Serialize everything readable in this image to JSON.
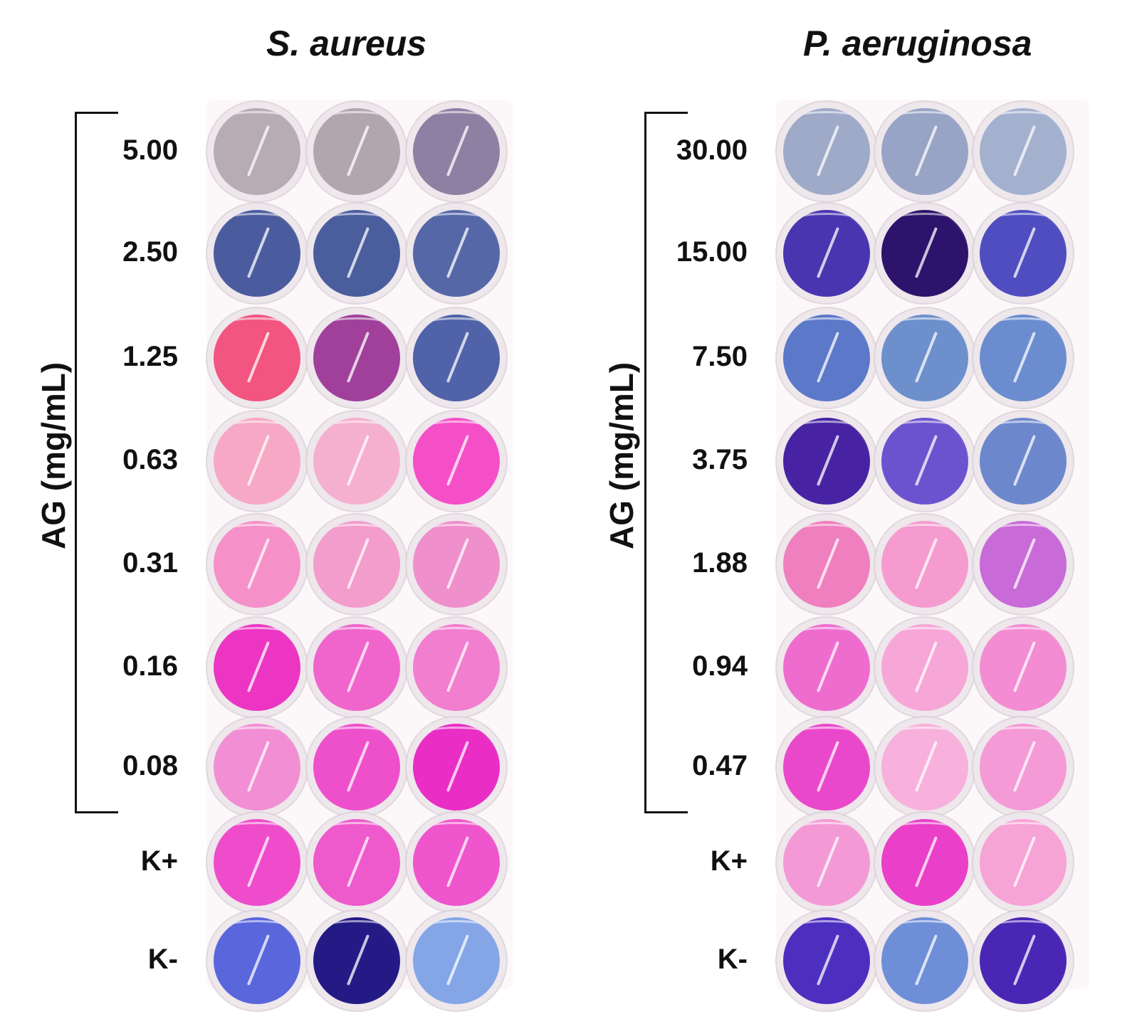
{
  "panels": [
    {
      "title": "S. aureus",
      "axis_label": "AG (mg/mL)",
      "rows": [
        {
          "label": "5.00",
          "wells": [
            "#b7acb3",
            "#b2a6ae",
            "#8e80a3"
          ]
        },
        {
          "label": "2.50",
          "wells": [
            "#4b5c9e",
            "#4a5d9d",
            "#5567a6"
          ]
        },
        {
          "label": "1.25",
          "wells": [
            "#f2557f",
            "#a0409b",
            "#5062a8"
          ]
        },
        {
          "label": "0.63",
          "wells": [
            "#f7a8c4",
            "#f6b0cf",
            "#f54fc8"
          ]
        },
        {
          "label": "0.31",
          "wells": [
            "#f591c8",
            "#f29dcb",
            "#ef8fcb"
          ]
        },
        {
          "label": "0.16",
          "wells": [
            "#ec35c2",
            "#f065cc",
            "#f27ed0"
          ]
        },
        {
          "label": "0.08",
          "wells": [
            "#f28fd4",
            "#ee50cc",
            "#e92dc5"
          ]
        },
        {
          "label": "K+",
          "wells": [
            "#ef4ccb",
            "#ee59cc",
            "#ef55cc"
          ]
        },
        {
          "label": "K-",
          "wells": [
            "#5a66dc",
            "#241a86",
            "#84a6e6"
          ]
        }
      ]
    },
    {
      "title": "P. aeruginosa",
      "axis_label": "AG (mg/mL)",
      "rows": [
        {
          "label": "30.00",
          "wells": [
            "#9eaac8",
            "#98a4c6",
            "#a3b1cf"
          ]
        },
        {
          "label": "15.00",
          "wells": [
            "#4a35b0",
            "#2d136b",
            "#4f4dc0"
          ]
        },
        {
          "label": "7.50",
          "wells": [
            "#5b78c9",
            "#6d90cc",
            "#6b8dcf"
          ]
        },
        {
          "label": "3.75",
          "wells": [
            "#4723a3",
            "#6b53cf",
            "#6c87cc"
          ]
        },
        {
          "label": "1.88",
          "wells": [
            "#f07fbf",
            "#f59bcf",
            "#c86ad8"
          ]
        },
        {
          "label": "0.94",
          "wells": [
            "#ef6ccf",
            "#f7a6d8",
            "#f38cd2"
          ]
        },
        {
          "label": "0.47",
          "wells": [
            "#ea48cb",
            "#f7b1dc",
            "#f49ad6"
          ]
        },
        {
          "label": "K+",
          "wells": [
            "#f39ad6",
            "#ea3fc8",
            "#f6a3d6"
          ]
        },
        {
          "label": "K-",
          "wells": [
            "#4c2fbf",
            "#6f8ed8",
            "#4a26b4"
          ]
        }
      ]
    }
  ]
}
